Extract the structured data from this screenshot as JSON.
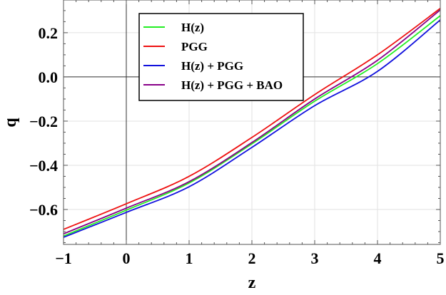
{
  "chart_data": {
    "type": "line",
    "title": "",
    "xlabel": "z",
    "ylabel": "q",
    "xlim": [
      -1,
      5
    ],
    "ylim": [
      -0.758,
      0.348
    ],
    "grid": true,
    "legend_position": "upper-left-inside",
    "x_ticks": [
      -1,
      0,
      1,
      2,
      3,
      4,
      5
    ],
    "x_tick_labels": [
      "−1",
      "0",
      "1",
      "2",
      "3",
      "4",
      "5"
    ],
    "y_ticks": [
      0.2,
      0.0,
      -0.2,
      -0.4,
      -0.6
    ],
    "y_tick_labels": [
      "0.2",
      "0.0",
      "−0.2",
      "−0.4",
      "−0.6"
    ],
    "x": [
      -1,
      0,
      1,
      2,
      3,
      4,
      5
    ],
    "series": [
      {
        "name": "H(z)",
        "color": "#22ee22",
        "values": [
          -0.72,
          -0.603,
          -0.48,
          -0.303,
          -0.11,
          0.06,
          0.277
        ]
      },
      {
        "name": "PGG",
        "color": "#ee1111",
        "values": [
          -0.69,
          -0.574,
          -0.45,
          -0.274,
          -0.08,
          0.1,
          0.31
        ]
      },
      {
        "name": "H(z) + PGG",
        "color": "#1111dd",
        "values": [
          -0.726,
          -0.613,
          -0.497,
          -0.319,
          -0.13,
          0.025,
          0.258
        ]
      },
      {
        "name": "H(z) + PGG + BAO",
        "color": "#880088",
        "values": [
          -0.71,
          -0.594,
          -0.474,
          -0.297,
          -0.1,
          0.075,
          0.303
        ]
      }
    ],
    "reference_lines": {
      "horizontal": 0.0,
      "vertical": 0
    }
  }
}
